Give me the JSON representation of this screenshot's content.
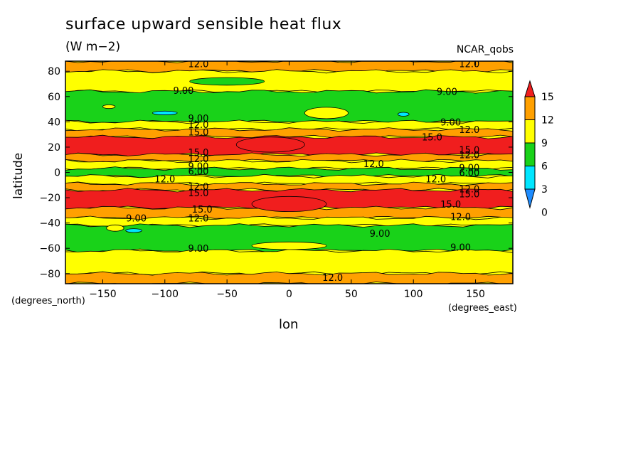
{
  "chart_data": {
    "type": "heatmap",
    "title": "surface upward sensible heat flux",
    "units": "(W m−2)",
    "source_label": "NCAR_qobs",
    "xlabel": "lon",
    "ylabel": "latitude",
    "x_unit": "(degrees_east)",
    "y_unit": "(degrees_north)",
    "xlim": [
      -180,
      180
    ],
    "ylim": [
      -88,
      88
    ],
    "x_ticks": [
      -150,
      -100,
      -50,
      0,
      50,
      100,
      150
    ],
    "y_ticks": [
      -80,
      -60,
      -40,
      -20,
      0,
      20,
      40,
      60,
      80
    ],
    "colorbar": {
      "levels": [
        0,
        3,
        6,
        9,
        12,
        15
      ],
      "colors": [
        "#1e8cff",
        "#00e6ff",
        "#19d219",
        "#ffff00",
        "#ffa000",
        "#f01e1e"
      ],
      "labels": [
        "0",
        "3",
        "6",
        "9",
        "12",
        "15"
      ]
    },
    "bands": [
      {
        "lat_top": 88,
        "lat_bottom": 80,
        "level": 12
      },
      {
        "lat_top": 80,
        "lat_bottom": 64,
        "level": 9
      },
      {
        "lat_top": 64,
        "lat_bottom": 40,
        "level": 6
      },
      {
        "lat_top": 40,
        "lat_bottom": 34,
        "level": 9
      },
      {
        "lat_top": 34,
        "lat_bottom": 28,
        "level": 12
      },
      {
        "lat_top": 28,
        "lat_bottom": 14,
        "level": 15
      },
      {
        "lat_top": 14,
        "lat_bottom": 9,
        "level": 12
      },
      {
        "lat_top": 9,
        "lat_bottom": 3,
        "level": 9
      },
      {
        "lat_top": 3,
        "lat_bottom": -3,
        "level": 6
      },
      {
        "lat_top": -3,
        "lat_bottom": -9,
        "level": 9
      },
      {
        "lat_top": -9,
        "lat_bottom": -14,
        "level": 12
      },
      {
        "lat_top": -14,
        "lat_bottom": -28,
        "level": 15
      },
      {
        "lat_top": -28,
        "lat_bottom": -36,
        "level": 12
      },
      {
        "lat_top": -36,
        "lat_bottom": -42,
        "level": 9
      },
      {
        "lat_top": -42,
        "lat_bottom": -62,
        "level": 6
      },
      {
        "lat_top": -62,
        "lat_bottom": -80,
        "level": 9
      },
      {
        "lat_top": -80,
        "lat_bottom": -88,
        "level": 12
      }
    ],
    "patches": [
      {
        "lon": -15,
        "lat": 22,
        "dlon": 55,
        "dlat": 12,
        "level": 15
      },
      {
        "lon": 0,
        "lat": -25,
        "dlon": 60,
        "dlat": 12,
        "level": 15
      },
      {
        "lon": 30,
        "lat": 47,
        "dlon": 35,
        "dlat": 9,
        "level": 9
      },
      {
        "lon": -50,
        "lat": 72,
        "dlon": 60,
        "dlat": 6,
        "level": 6
      },
      {
        "lon": 0,
        "lat": -58,
        "dlon": 60,
        "dlat": 6,
        "level": 9
      },
      {
        "lon": -100,
        "lat": 47,
        "dlon": 20,
        "dlat": 3,
        "level": 3
      },
      {
        "lon": 92,
        "lat": 46,
        "dlon": 9,
        "dlat": 3,
        "level": 3
      },
      {
        "lon": -125,
        "lat": -46,
        "dlon": 13,
        "dlat": 3,
        "level": 3
      },
      {
        "lon": -145,
        "lat": 52,
        "dlon": 10,
        "dlat": 3,
        "level": 9
      },
      {
        "lon": -140,
        "lat": -44,
        "dlon": 14,
        "dlat": 5,
        "level": 9
      }
    ],
    "contour_labels": [
      {
        "text": "12.0",
        "lon": -73,
        "lat": 86
      },
      {
        "text": "12.0",
        "lon": 145,
        "lat": 86
      },
      {
        "text": "9.00",
        "lon": -85,
        "lat": 65
      },
      {
        "text": "9.00",
        "lon": 127,
        "lat": 64
      },
      {
        "text": "9.00",
        "lon": -73,
        "lat": 43
      },
      {
        "text": "12.0",
        "lon": -73,
        "lat": 38
      },
      {
        "text": "15.0",
        "lon": -73,
        "lat": 32
      },
      {
        "text": "9.00",
        "lon": 130,
        "lat": 40
      },
      {
        "text": "12.0",
        "lon": 145,
        "lat": 34
      },
      {
        "text": "15.0",
        "lon": 115,
        "lat": 28
      },
      {
        "text": "15.0",
        "lon": -73,
        "lat": 16
      },
      {
        "text": "15.0",
        "lon": 145,
        "lat": 18
      },
      {
        "text": "12.0",
        "lon": -73,
        "lat": 11
      },
      {
        "text": "12.0",
        "lon": 145,
        "lat": 14
      },
      {
        "text": "12.0",
        "lon": 68,
        "lat": 7
      },
      {
        "text": "9.00",
        "lon": -73,
        "lat": 5
      },
      {
        "text": "6.00",
        "lon": -73,
        "lat": 1
      },
      {
        "text": "9.00",
        "lon": 145,
        "lat": 4
      },
      {
        "text": "6.00",
        "lon": 145,
        "lat": 0
      },
      {
        "text": "12.0",
        "lon": -100,
        "lat": -5
      },
      {
        "text": "12.0",
        "lon": 118,
        "lat": -5
      },
      {
        "text": "12.0",
        "lon": -73,
        "lat": -11
      },
      {
        "text": "15.0",
        "lon": -73,
        "lat": -16
      },
      {
        "text": "12.0",
        "lon": 145,
        "lat": -13
      },
      {
        "text": "15.0",
        "lon": 145,
        "lat": -17
      },
      {
        "text": "15.0",
        "lon": 130,
        "lat": -25
      },
      {
        "text": "15.0",
        "lon": -70,
        "lat": -29
      },
      {
        "text": "12.0",
        "lon": -73,
        "lat": -36
      },
      {
        "text": "12.0",
        "lon": 138,
        "lat": -35
      },
      {
        "text": "9.00",
        "lon": -123,
        "lat": -36
      },
      {
        "text": "9.00",
        "lon": 73,
        "lat": -48
      },
      {
        "text": "9.00",
        "lon": -73,
        "lat": -60
      },
      {
        "text": "9.00",
        "lon": 138,
        "lat": -59
      },
      {
        "text": "12.0",
        "lon": 35,
        "lat": -83
      }
    ]
  }
}
